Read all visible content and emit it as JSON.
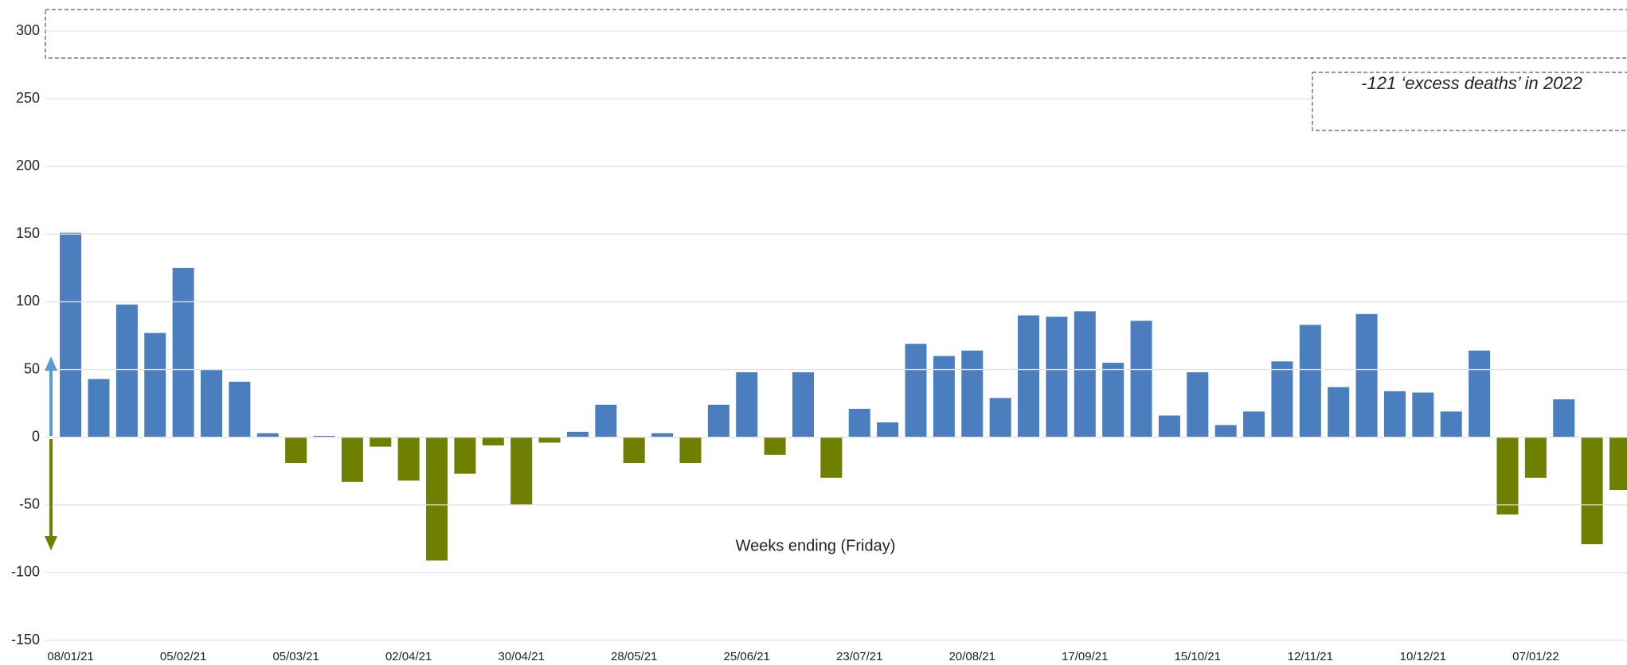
{
  "chart_data": {
    "type": "bar",
    "annotations": [
      "Weeks ending (Friday)",
      "-121 ‘excess deaths’ in 2022"
    ],
    "categories": [
      "08/01/21",
      null,
      null,
      null,
      "05/02/21",
      null,
      null,
      null,
      "05/03/21",
      null,
      null,
      null,
      "02/04/21",
      null,
      null,
      null,
      "30/04/21",
      null,
      null,
      null,
      "28/05/21",
      null,
      null,
      null,
      "25/06/21",
      null,
      null,
      null,
      "23/07/21",
      null,
      null,
      null,
      "20/08/21",
      null,
      null,
      null,
      "17/09/21",
      null,
      null,
      null,
      "15/10/21",
      null,
      null,
      null,
      "12/11/21",
      null,
      null,
      null,
      "10/12/21",
      null,
      null,
      null,
      "07/01/22",
      null,
      null,
      null
    ],
    "values": [
      151,
      43,
      98,
      77,
      125,
      50,
      41,
      3,
      -19,
      1,
      -33,
      -7,
      -32,
      -91,
      -27,
      -6,
      -50,
      -4,
      4,
      24,
      -19,
      3,
      -19,
      24,
      48,
      -13,
      48,
      -30,
      21,
      11,
      69,
      60,
      64,
      29,
      90,
      89,
      93,
      55,
      86,
      16,
      48,
      9,
      19,
      56,
      83,
      37,
      91,
      34,
      33,
      19,
      64,
      -57,
      -30,
      28,
      -79,
      -39
    ],
    "positive_color": "#4a7ebf",
    "negative_color": "#6f7f00",
    "ylim": [
      -150,
      300
    ],
    "yticks": [
      -150,
      -100,
      -50,
      0,
      50,
      100,
      150,
      200,
      250,
      300
    ],
    "grid": true
  }
}
